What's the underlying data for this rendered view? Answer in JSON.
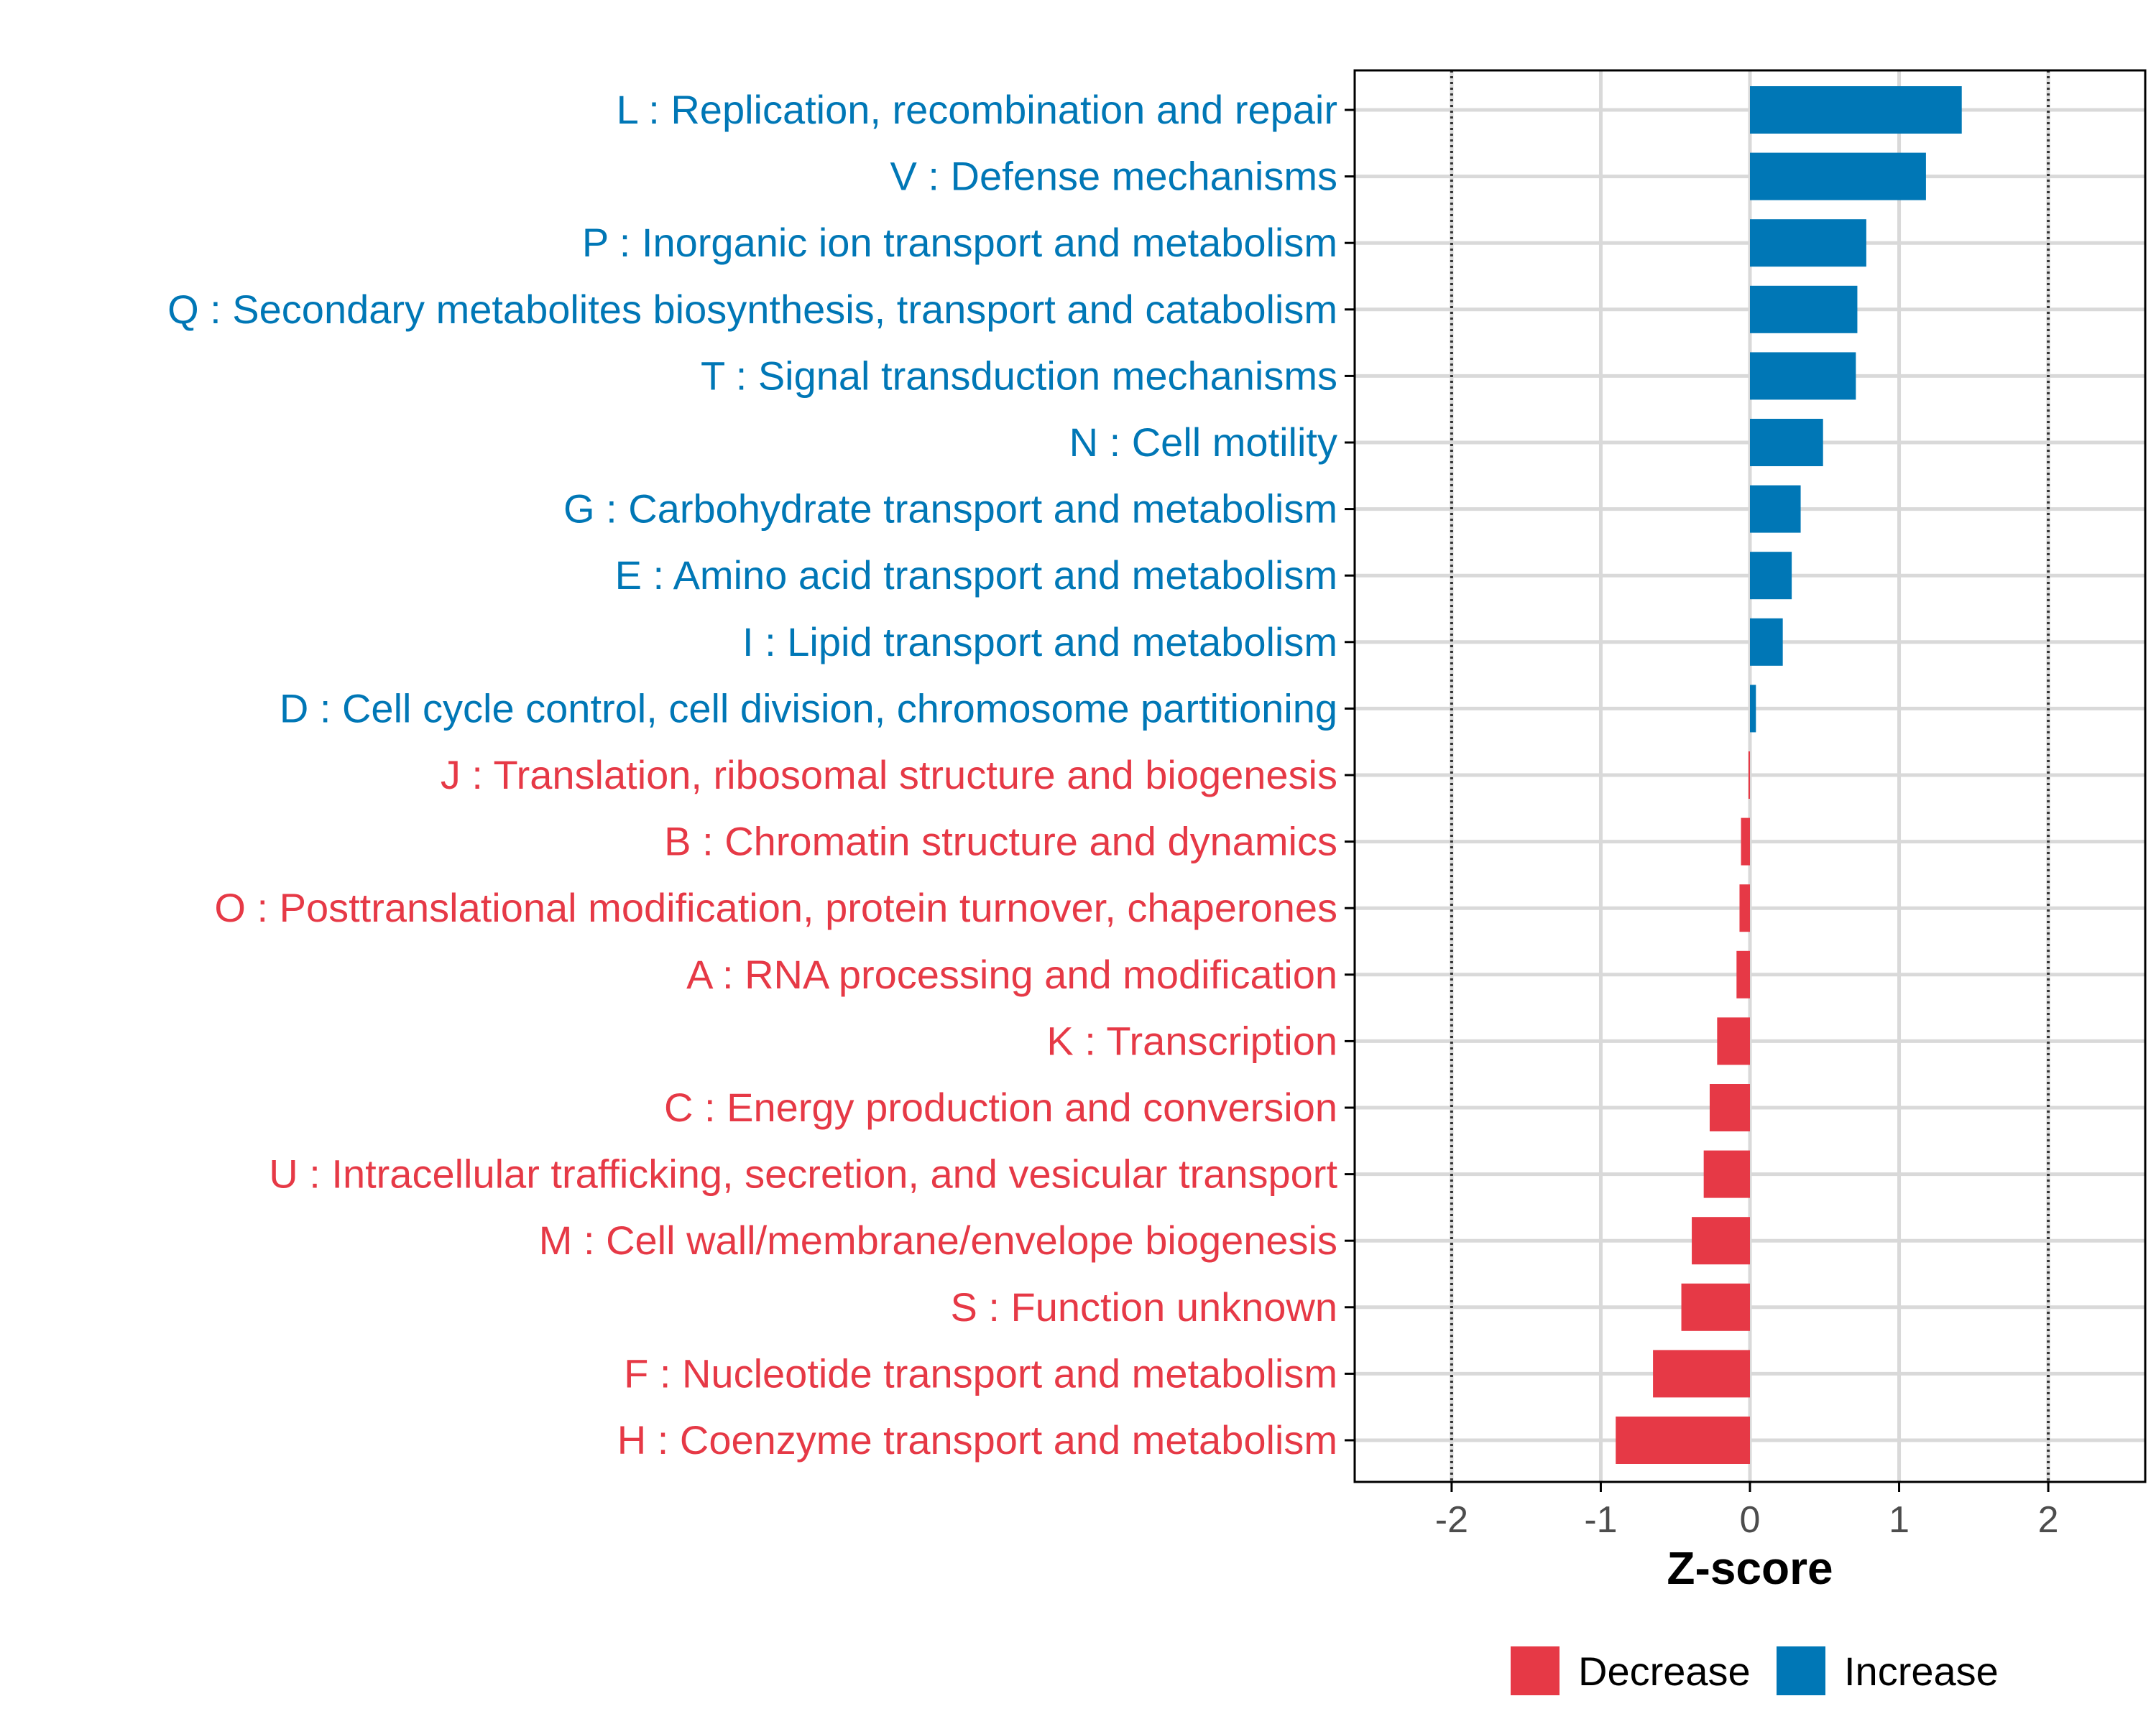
{
  "chart_data": {
    "type": "bar",
    "orientation": "horizontal",
    "xlabel": "Z-score",
    "ylabel": "",
    "xlim": [
      -2.65,
      2.65
    ],
    "x_ticks": [
      -2,
      -1,
      0,
      1,
      2
    ],
    "x_tick_labels": [
      "-2",
      "-1",
      "0",
      "1",
      "2"
    ],
    "reference_lines": [
      -2,
      2
    ],
    "grid": true,
    "categories": [
      "L : Replication, recombination and repair",
      "V : Defense mechanisms",
      "P : Inorganic ion transport and metabolism",
      "Q : Secondary metabolites biosynthesis, transport and catabolism",
      "T : Signal transduction mechanisms",
      "N : Cell motility",
      "G : Carbohydrate transport and metabolism",
      "E : Amino acid transport and metabolism",
      "I : Lipid transport and metabolism",
      "D : Cell cycle control, cell division, chromosome partitioning",
      "J : Translation, ribosomal structure and biogenesis",
      "B : Chromatin structure and dynamics",
      "O : Posttranslational modification, protein turnover, chaperones",
      "A : RNA processing and modification",
      "K : Transcription",
      "C : Energy production and conversion",
      "U : Intracellular trafficking, secretion, and vesicular transport",
      "M : Cell wall/membrane/envelope biogenesis",
      "S : Function unknown",
      "F : Nucleotide transport and metabolism",
      "H : Coenzyme transport and metabolism"
    ],
    "values": [
      1.42,
      1.18,
      0.78,
      0.72,
      0.71,
      0.49,
      0.34,
      0.28,
      0.22,
      0.04,
      -0.01,
      -0.06,
      -0.07,
      -0.09,
      -0.22,
      -0.27,
      -0.31,
      -0.39,
      -0.46,
      -0.65,
      -0.9
    ],
    "groups": [
      "Increase",
      "Increase",
      "Increase",
      "Increase",
      "Increase",
      "Increase",
      "Increase",
      "Increase",
      "Increase",
      "Increase",
      "Decrease",
      "Decrease",
      "Decrease",
      "Decrease",
      "Decrease",
      "Decrease",
      "Decrease",
      "Decrease",
      "Decrease",
      "Decrease",
      "Decrease"
    ],
    "legend": {
      "position": "bottom",
      "entries": [
        {
          "label": "Decrease",
          "color": "#E63946"
        },
        {
          "label": "Increase",
          "color": "#0077B6"
        }
      ]
    }
  },
  "colors": {
    "Decrease": "#E63946",
    "Increase": "#0077B6",
    "grid": "#d9d9d9",
    "axis": "#000000",
    "reference_line": "#333333"
  }
}
